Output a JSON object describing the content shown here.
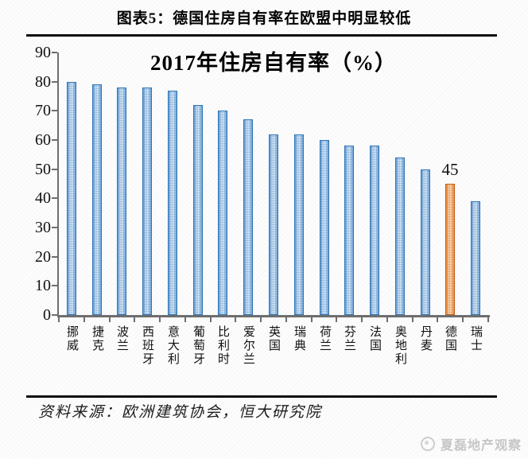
{
  "header": {
    "title": "图表5：德国住房自有率在欧盟中明显较低"
  },
  "chart_data": {
    "type": "bar",
    "title": "2017年住房自有率（%）",
    "categories": [
      "挪威",
      "捷克",
      "波兰",
      "西班牙",
      "意大利",
      "葡萄牙",
      "比利时",
      "爱尔兰",
      "英国",
      "瑞典",
      "荷兰",
      "芬兰",
      "法国",
      "奥地利",
      "丹麦",
      "德国",
      "瑞士"
    ],
    "values": [
      80,
      79,
      78,
      78,
      77,
      72,
      70,
      67,
      62,
      62,
      60,
      58,
      58,
      54,
      50,
      45,
      39
    ],
    "highlight_index": 15,
    "highlighted_category": "德国",
    "data_label": "45",
    "xlabel": "",
    "ylabel": "",
    "ylim": [
      0,
      90
    ],
    "yticks": [
      0,
      10,
      20,
      30,
      40,
      50,
      60,
      70,
      80,
      90
    ],
    "grid": false,
    "legend": "none",
    "colors": {
      "axis": "#6e6e6e",
      "bar_border": "#2E74B5",
      "bar_edge": "#6fa3d8",
      "bar_mid": "#b9d4ee",
      "bar_center": "#e9f2fb",
      "bar_dot": "rgba(46,116,181,0.45)",
      "highlight_border": "#C55A11",
      "highlight_edge": "#eb9147",
      "highlight_mid": "#f6c490",
      "highlight_center": "#fde8d2",
      "highlight_dot": "rgba(197,90,17,0.5)"
    }
  },
  "footer": {
    "source": "资料来源：欧洲建筑协会，恒大研究院"
  },
  "watermark": {
    "text": "夏磊地产观察"
  }
}
